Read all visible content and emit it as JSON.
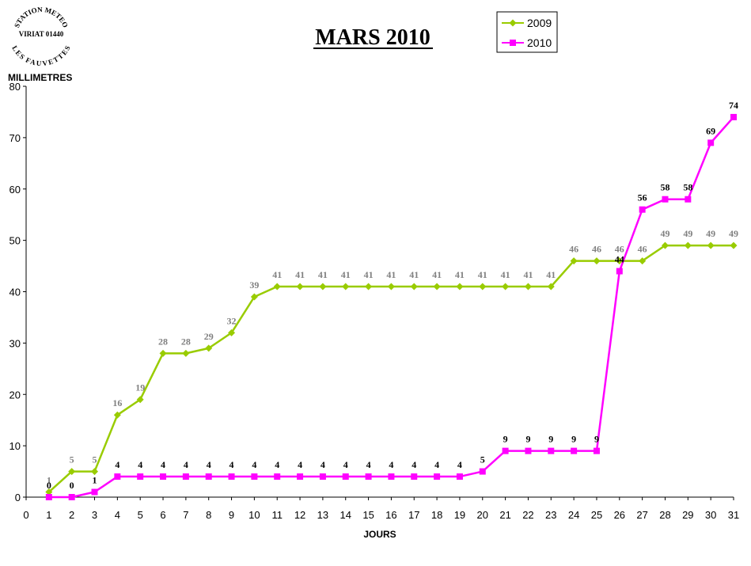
{
  "stamp": {
    "top_text": "STATION METEO",
    "middle_text": "VIRIAT 01440",
    "bottom_text": "LES FAUVETTES"
  },
  "chart_data": {
    "type": "line",
    "title": "MARS 2010",
    "ylabel": "MILLIMETRES",
    "xlabel": "JOURS",
    "ylim": [
      0,
      80
    ],
    "yticks": [
      0,
      10,
      20,
      30,
      40,
      50,
      60,
      70,
      80
    ],
    "xlim": [
      0,
      31
    ],
    "xticks": [
      0,
      1,
      2,
      3,
      4,
      5,
      6,
      7,
      8,
      9,
      10,
      11,
      12,
      13,
      14,
      15,
      16,
      17,
      18,
      19,
      20,
      21,
      22,
      23,
      24,
      25,
      26,
      27,
      28,
      29,
      30,
      31
    ],
    "legend_position": "top-right",
    "x": [
      1,
      2,
      3,
      4,
      5,
      6,
      7,
      8,
      9,
      10,
      11,
      12,
      13,
      14,
      15,
      16,
      17,
      18,
      19,
      20,
      21,
      22,
      23,
      24,
      25,
      26,
      27,
      28,
      29,
      30,
      31
    ],
    "series": [
      {
        "name": "2009",
        "color": "#99CC00",
        "marker": "diamond",
        "label_color": "#808080",
        "values": [
          1,
          5,
          5,
          16,
          19,
          28,
          28,
          29,
          32,
          39,
          41,
          41,
          41,
          41,
          41,
          41,
          41,
          41,
          41,
          41,
          41,
          41,
          41,
          46,
          46,
          46,
          46,
          49,
          49,
          49,
          49
        ]
      },
      {
        "name": "2010",
        "color": "#FF00FF",
        "marker": "square",
        "label_color": "#000000",
        "values": [
          0,
          0,
          1,
          4,
          4,
          4,
          4,
          4,
          4,
          4,
          4,
          4,
          4,
          4,
          4,
          4,
          4,
          4,
          4,
          5,
          9,
          9,
          9,
          9,
          9,
          44,
          56,
          58,
          58,
          69,
          74
        ]
      }
    ]
  }
}
